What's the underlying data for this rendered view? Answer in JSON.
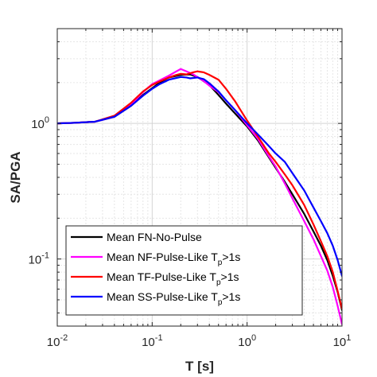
{
  "chart_data": {
    "type": "line",
    "xlabel": "T [s]",
    "ylabel": "SA/PGA",
    "x_scale": "log",
    "y_scale": "log",
    "xlim": [
      0.01,
      10
    ],
    "ylim": [
      0.032,
      5
    ],
    "grid": true,
    "legend_position": "bottom-left",
    "x_ticks": [
      {
        "value": 0.01,
        "base": "10",
        "exp": "-2"
      },
      {
        "value": 0.1,
        "base": "10",
        "exp": "-1"
      },
      {
        "value": 1,
        "base": "10",
        "exp": "0"
      },
      {
        "value": 10,
        "base": "10",
        "exp": "1"
      }
    ],
    "y_ticks": [
      {
        "value": 0.1,
        "base": "10",
        "exp": "-1"
      },
      {
        "value": 1,
        "base": "10",
        "exp": "0"
      }
    ],
    "series": [
      {
        "name": "Mean FN-No-Pulse",
        "legend_main": "Mean FN-No-Pulse",
        "legend_sub": "",
        "legend_tail": "",
        "color": "#000000",
        "points": [
          [
            0.01,
            1
          ],
          [
            0.015,
            1.01
          ],
          [
            0.025,
            1.03
          ],
          [
            0.04,
            1.12
          ],
          [
            0.06,
            1.35
          ],
          [
            0.08,
            1.62
          ],
          [
            0.1,
            1.82
          ],
          [
            0.12,
            2
          ],
          [
            0.15,
            2.18
          ],
          [
            0.2,
            2.28
          ],
          [
            0.25,
            2.3
          ],
          [
            0.3,
            2.2
          ],
          [
            0.4,
            1.92
          ],
          [
            0.5,
            1.62
          ],
          [
            0.6,
            1.4
          ],
          [
            0.75,
            1.18
          ],
          [
            1,
            0.95
          ],
          [
            1.3,
            0.75
          ],
          [
            1.7,
            0.56
          ],
          [
            2,
            0.47
          ],
          [
            2.5,
            0.37
          ],
          [
            3,
            0.3
          ],
          [
            4,
            0.215
          ],
          [
            5,
            0.16
          ],
          [
            6,
            0.125
          ],
          [
            7,
            0.098
          ],
          [
            8,
            0.075
          ],
          [
            9,
            0.057
          ],
          [
            10,
            0.042
          ]
        ]
      },
      {
        "name": "Mean NF-Pulse-Like Tp>1s",
        "legend_main": "Mean NF-Pulse-Like T",
        "legend_sub": "p",
        "legend_tail": ">1s",
        "color": "#ff00ff",
        "points": [
          [
            0.01,
            1
          ],
          [
            0.015,
            1.01
          ],
          [
            0.025,
            1.03
          ],
          [
            0.04,
            1.12
          ],
          [
            0.06,
            1.38
          ],
          [
            0.08,
            1.7
          ],
          [
            0.1,
            1.95
          ],
          [
            0.12,
            2.08
          ],
          [
            0.15,
            2.25
          ],
          [
            0.18,
            2.42
          ],
          [
            0.2,
            2.52
          ],
          [
            0.23,
            2.42
          ],
          [
            0.27,
            2.3
          ],
          [
            0.3,
            2.2
          ],
          [
            0.35,
            2.05
          ],
          [
            0.4,
            1.9
          ],
          [
            0.5,
            1.7
          ],
          [
            0.6,
            1.48
          ],
          [
            0.75,
            1.25
          ],
          [
            1,
            0.97
          ],
          [
            1.3,
            0.77
          ],
          [
            1.7,
            0.57
          ],
          [
            2,
            0.48
          ],
          [
            2.5,
            0.36
          ],
          [
            3,
            0.28
          ],
          [
            4,
            0.19
          ],
          [
            5,
            0.14
          ],
          [
            6,
            0.105
          ],
          [
            7,
            0.082
          ],
          [
            8,
            0.062
          ],
          [
            9,
            0.045
          ],
          [
            10,
            0.033
          ]
        ]
      },
      {
        "name": "Mean TF-Pulse-Like Tp>1s",
        "legend_main": "Mean TF-Pulse-Like T",
        "legend_sub": "p",
        "legend_tail": ">1s",
        "color": "#ff0000",
        "points": [
          [
            0.01,
            1
          ],
          [
            0.015,
            1.01
          ],
          [
            0.025,
            1.03
          ],
          [
            0.04,
            1.14
          ],
          [
            0.06,
            1.42
          ],
          [
            0.08,
            1.72
          ],
          [
            0.1,
            1.92
          ],
          [
            0.12,
            2.04
          ],
          [
            0.15,
            2.18
          ],
          [
            0.18,
            2.28
          ],
          [
            0.2,
            2.32
          ],
          [
            0.23,
            2.3
          ],
          [
            0.27,
            2.38
          ],
          [
            0.3,
            2.42
          ],
          [
            0.35,
            2.38
          ],
          [
            0.4,
            2.28
          ],
          [
            0.5,
            2.1
          ],
          [
            0.6,
            1.8
          ],
          [
            0.75,
            1.45
          ],
          [
            1,
            1.05
          ],
          [
            1.3,
            0.8
          ],
          [
            1.7,
            0.6
          ],
          [
            2,
            0.52
          ],
          [
            2.5,
            0.42
          ],
          [
            3,
            0.35
          ],
          [
            4,
            0.25
          ],
          [
            5,
            0.18
          ],
          [
            6,
            0.135
          ],
          [
            7,
            0.105
          ],
          [
            8,
            0.08
          ],
          [
            9,
            0.058
          ],
          [
            10,
            0.043
          ]
        ]
      },
      {
        "name": "Mean SS-Pulse-Like Tp>1s",
        "legend_main": "Mean SS-Pulse-Like T",
        "legend_sub": "p",
        "legend_tail": ">1s",
        "color": "#0000ff",
        "points": [
          [
            0.01,
            1
          ],
          [
            0.015,
            1.01
          ],
          [
            0.025,
            1.03
          ],
          [
            0.04,
            1.12
          ],
          [
            0.06,
            1.35
          ],
          [
            0.08,
            1.6
          ],
          [
            0.1,
            1.8
          ],
          [
            0.12,
            1.95
          ],
          [
            0.15,
            2.1
          ],
          [
            0.2,
            2.2
          ],
          [
            0.23,
            2.18
          ],
          [
            0.25,
            2.15
          ],
          [
            0.3,
            2.18
          ],
          [
            0.35,
            2.12
          ],
          [
            0.4,
            1.98
          ],
          [
            0.5,
            1.72
          ],
          [
            0.6,
            1.48
          ],
          [
            0.75,
            1.25
          ],
          [
            1,
            1.0
          ],
          [
            1.3,
            0.83
          ],
          [
            1.7,
            0.68
          ],
          [
            2,
            0.6
          ],
          [
            2.5,
            0.52
          ],
          [
            3,
            0.43
          ],
          [
            4,
            0.32
          ],
          [
            5,
            0.24
          ],
          [
            6,
            0.19
          ],
          [
            7,
            0.155
          ],
          [
            8,
            0.125
          ],
          [
            9,
            0.098
          ],
          [
            10,
            0.075
          ]
        ]
      }
    ]
  }
}
